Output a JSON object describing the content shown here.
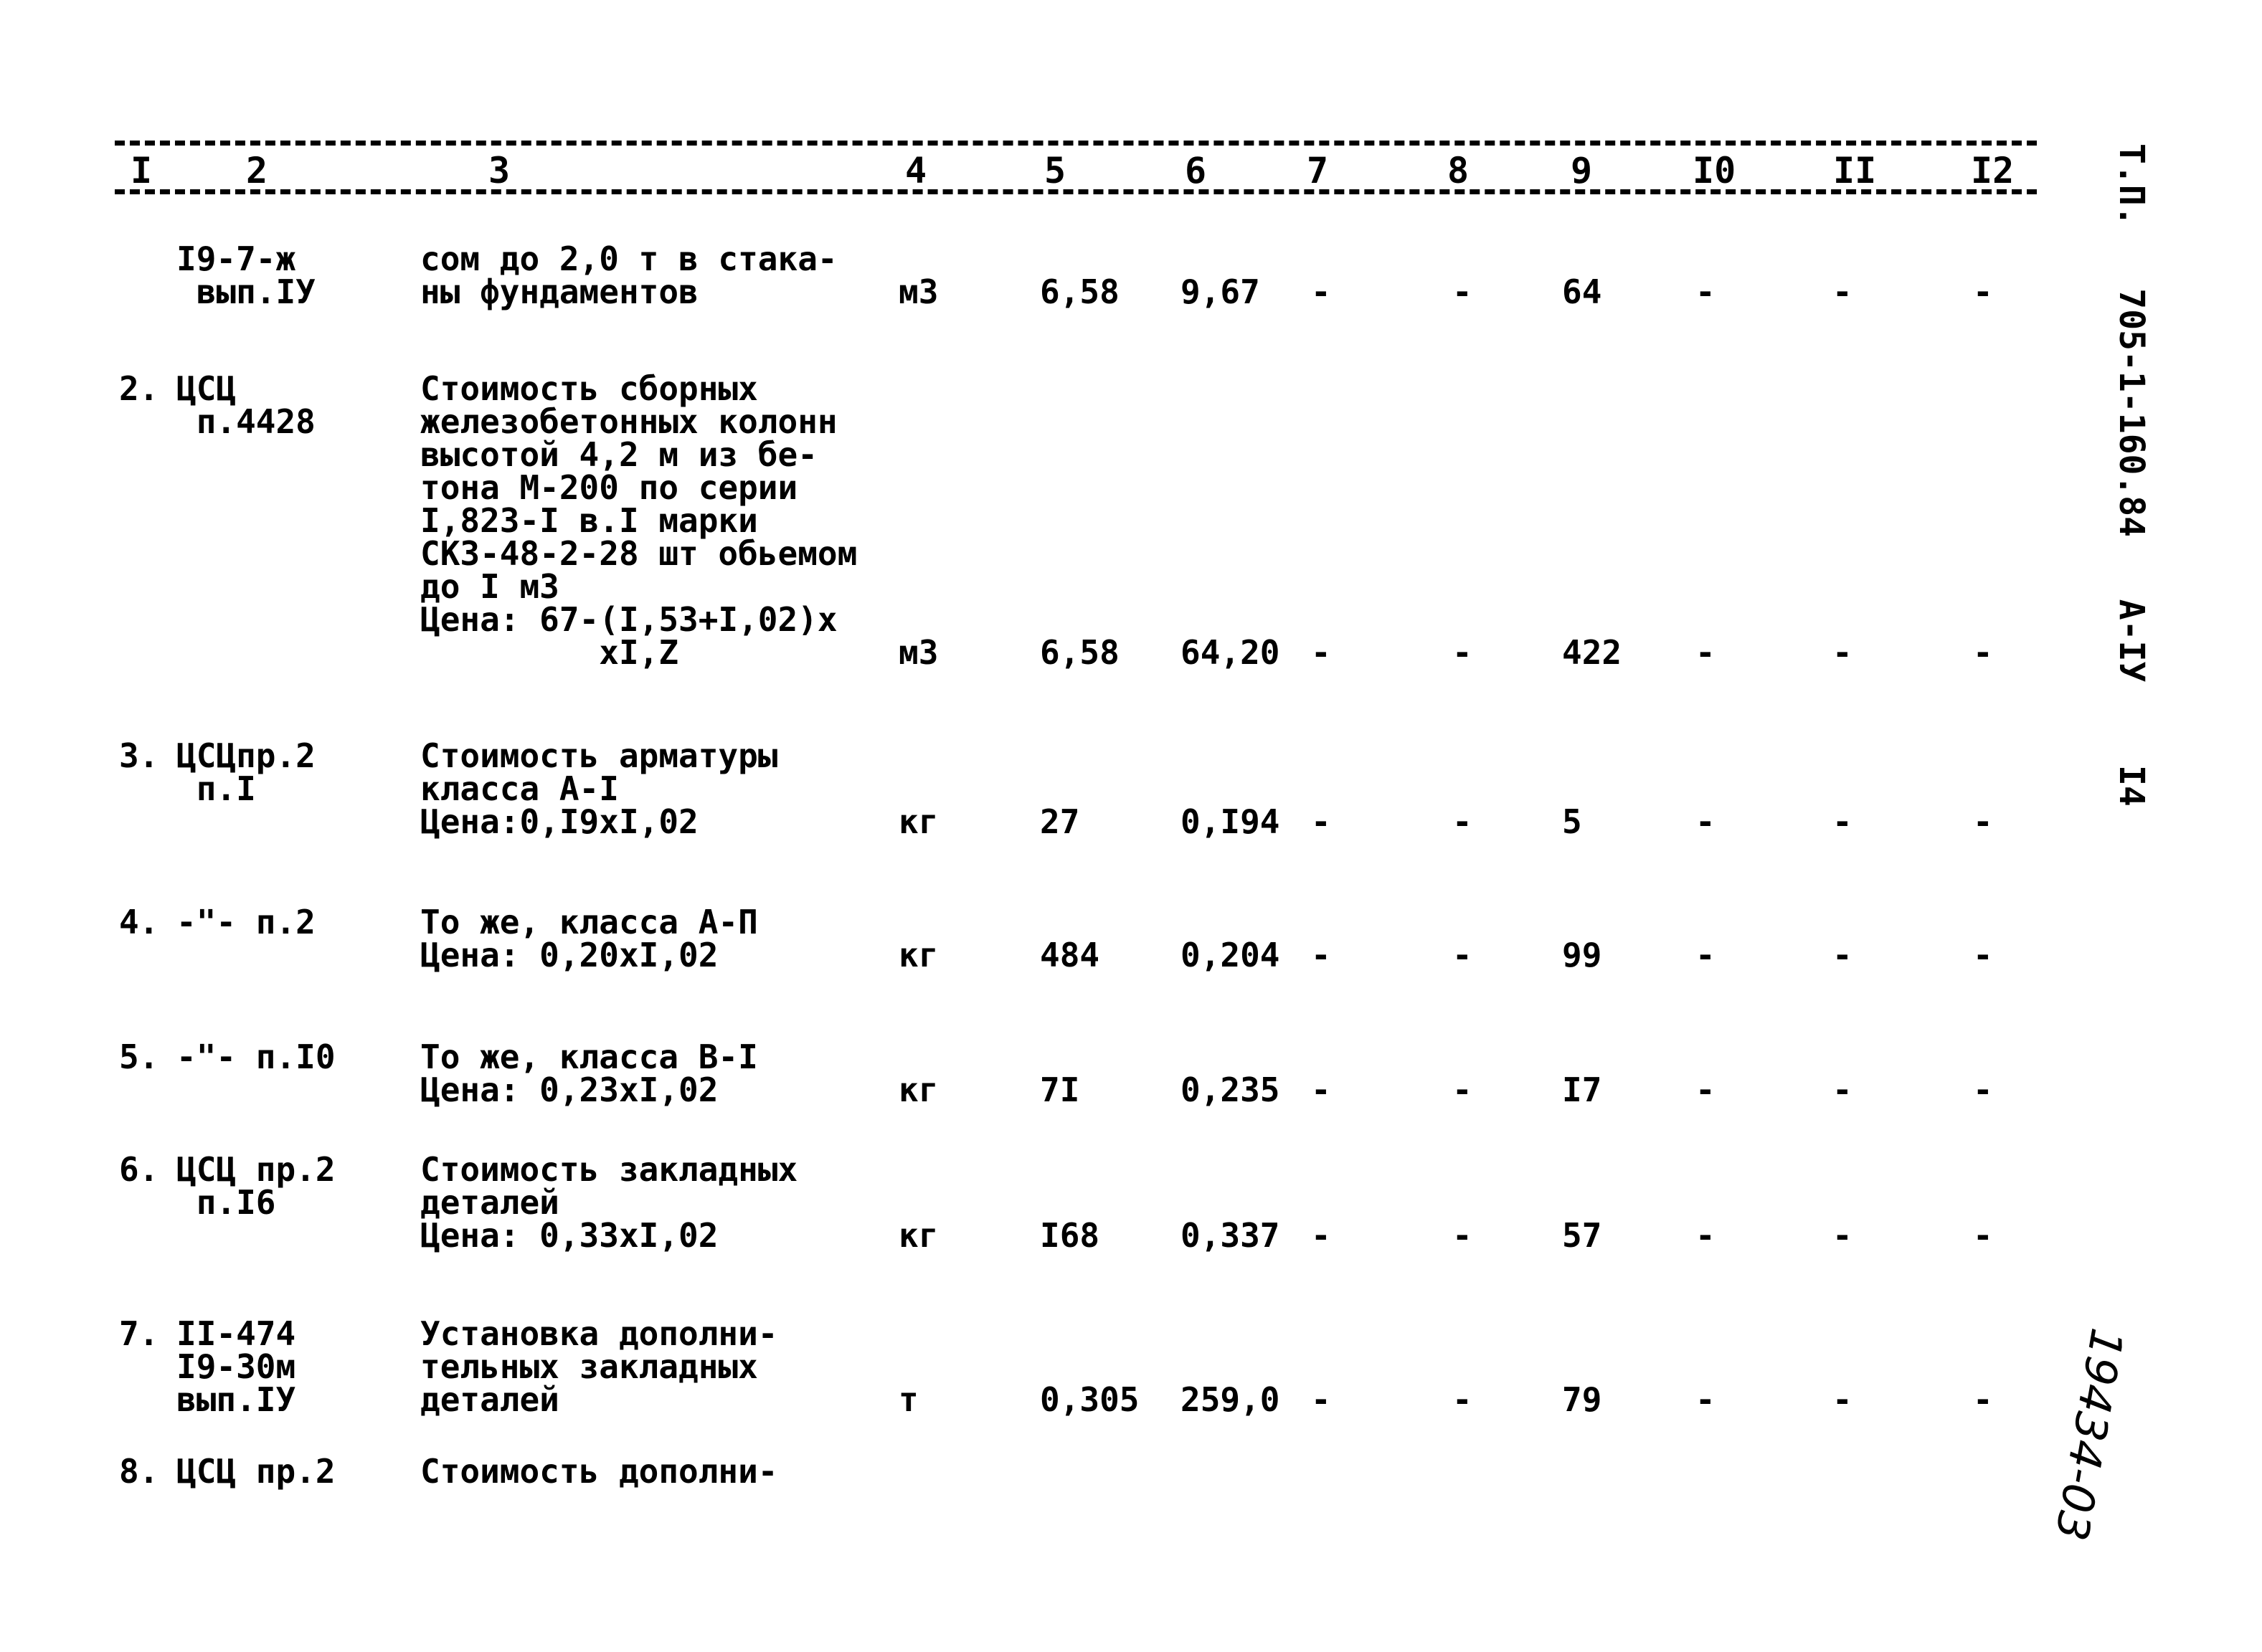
{
  "header": {
    "columns": [
      "I",
      "2",
      "3",
      "4",
      "5",
      "6",
      "7",
      "8",
      "9",
      "I0",
      "II",
      "I2"
    ]
  },
  "side_label": {
    "parts": [
      "Т.П.",
      "705-1-160.84",
      "А-IУ",
      "I4"
    ]
  },
  "handwritten_number": "19434-03",
  "rows": [
    {
      "num": "",
      "code": "I9-7-ж\n вып.IУ",
      "desc": "сом до 2,0 т в стака-\nны фундаментов",
      "unit": "м3",
      "c5": "6,58",
      "c6": "9,67",
      "c7": "-",
      "c8": "-",
      "c9": "64",
      "c10": "-",
      "c11": "-",
      "c12": "-"
    },
    {
      "num": "2.",
      "code": "ЦСЦ\n п.4428",
      "desc": "Стоимость сборных\nжелезобетонных колонн\nвысотой 4,2 м из бе-\nтона М-200 по серии\nI,823-I в.I марки\nСК3-48-2-28 шт обьемом\nдо I м3\nЦена: 67-(I,53+I,02)х\n         хI,Z",
      "unit": "м3",
      "c5": "6,58",
      "c6": "64,20",
      "c7": "-",
      "c8": "-",
      "c9": "422",
      "c10": "-",
      "c11": "-",
      "c12": "-"
    },
    {
      "num": "3.",
      "code": "ЦСЦпр.2\n п.I",
      "desc": "Стоимость арматуры\nкласса А-I\nЦена:0,I9хI,02",
      "unit": "кг",
      "c5": "27",
      "c6": "0,I94",
      "c7": "-",
      "c8": "-",
      "c9": "5",
      "c10": "-",
      "c11": "-",
      "c12": "-"
    },
    {
      "num": "4.",
      "code": "-\"- п.2",
      "desc": "То же, класса А-П\nЦена: 0,20хI,02",
      "unit": "кг",
      "c5": "484",
      "c6": "0,204",
      "c7": "-",
      "c8": "-",
      "c9": "99",
      "c10": "-",
      "c11": "-",
      "c12": "-"
    },
    {
      "num": "5.",
      "code": "-\"- п.I0",
      "desc": "То же, класса В-I\nЦена: 0,23хI,02",
      "unit": "кг",
      "c5": "7I",
      "c6": "0,235",
      "c7": "-",
      "c8": "-",
      "c9": "I7",
      "c10": "-",
      "c11": "-",
      "c12": "-"
    },
    {
      "num": "6.",
      "code": "ЦСЦ пр.2\n п.I6",
      "desc": "Стоимость закладных\nдеталей\nЦена: 0,33хI,02",
      "unit": "кг",
      "c5": "I68",
      "c6": "0,337",
      "c7": "-",
      "c8": "-",
      "c9": "57",
      "c10": "-",
      "c11": "-",
      "c12": "-"
    },
    {
      "num": "7.",
      "code": "II-474\nI9-30м\nвып.IУ",
      "desc": "Установка дополни-\nтельных закладных\nдеталей",
      "unit": "т",
      "c5": "0,305",
      "c6": "259,0",
      "c7": "-",
      "c8": "-",
      "c9": "79",
      "c10": "-",
      "c11": "-",
      "c12": "-"
    },
    {
      "num": "8.",
      "code": "ЦСЦ пр.2",
      "desc": "Стоимость дополни-",
      "unit": "",
      "c5": "",
      "c6": "",
      "c7": "",
      "c8": "",
      "c9": "",
      "c10": "",
      "c11": "",
      "c12": ""
    }
  ]
}
